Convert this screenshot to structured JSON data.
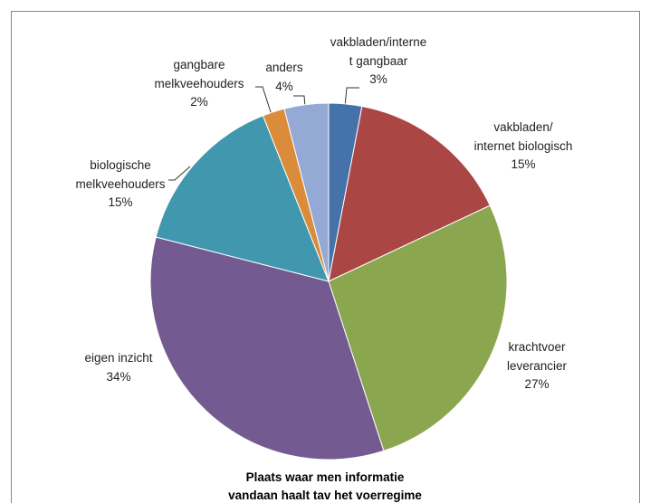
{
  "chart_data": {
    "type": "pie",
    "title": "Plaats waar men informatie\nvandaan haalt tav het voerregime",
    "categories": [
      "vakbladen/interne\nt gangbaar",
      "vakbladen/\ninternet biologisch",
      "krachtvoer\nleverancier",
      "eigen inzicht",
      "biologische\nmelkveehouders",
      "gangbare\nmelkveehouders",
      "anders"
    ],
    "values": [
      3,
      15,
      27,
      34,
      15,
      2,
      4
    ],
    "value_labels": [
      "3%",
      "15%",
      "27%",
      "34%",
      "15%",
      "2%",
      "4%"
    ],
    "colors": [
      "#4672aa",
      "#aa4644",
      "#8aa64f",
      "#735a91",
      "#4198ae",
      "#db8c3a",
      "#94a9d4"
    ]
  }
}
